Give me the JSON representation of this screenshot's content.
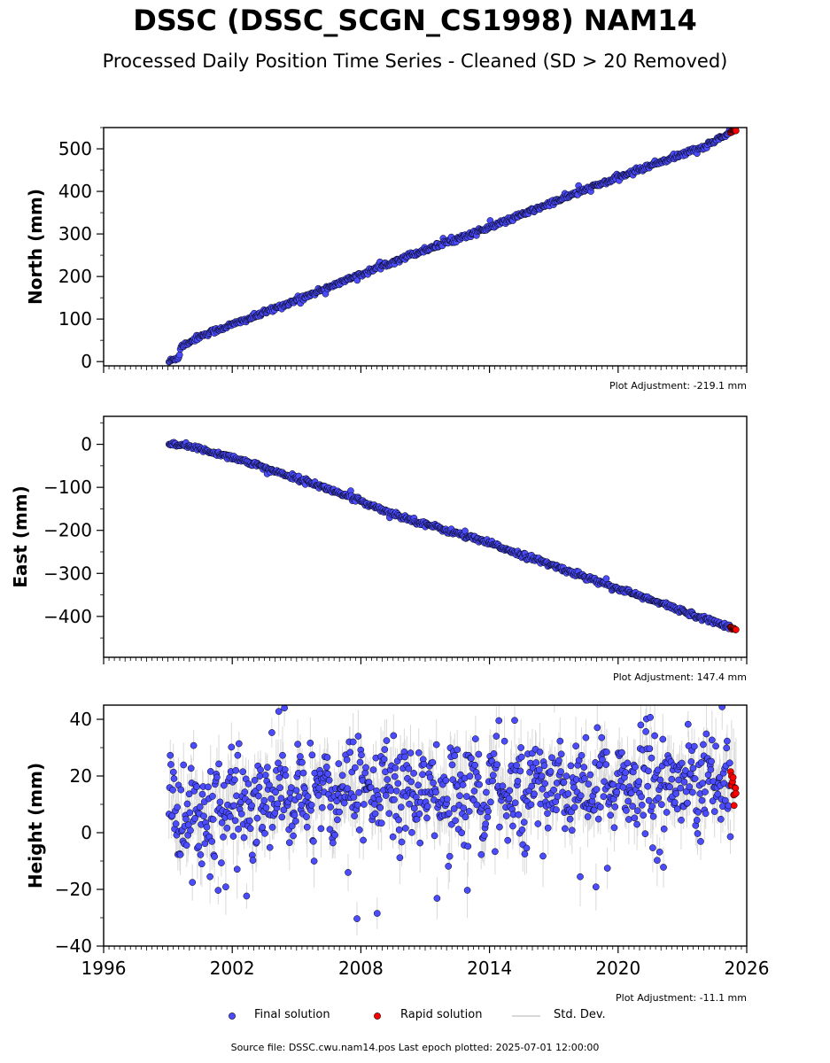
{
  "chart_data": {
    "title": "DSSC (DSSC_SCGN_CS1998) NAM14",
    "subtitle": "Processed Daily Position Time Series - Cleaned (SD > 20 Removed)",
    "type": "scatter",
    "x_range": [
      1996,
      2026
    ],
    "x_ticks": [
      "1996",
      "2002",
      "2008",
      "2014",
      "2020",
      "2026"
    ],
    "data_start": 1999.05,
    "data_end": 2025.5,
    "rapid_start": 2025.25,
    "panels": [
      {
        "ylabel": "North (mm)",
        "ylim": [
          -10,
          550
        ],
        "yticks": [
          "0",
          "100",
          "200",
          "300",
          "400",
          "500"
        ],
        "ytick_values": [
          0,
          100,
          200,
          300,
          400,
          500
        ],
        "adjustment": "Plot Adjustment: -219.1 mm",
        "trend": [
          [
            1999.05,
            0
          ],
          [
            1999.5,
            10
          ],
          [
            1999.6,
            35
          ],
          [
            2000.5,
            60
          ],
          [
            2003,
            105
          ],
          [
            2006,
            165
          ],
          [
            2010,
            245
          ],
          [
            2014,
            315
          ],
          [
            2018,
            395
          ],
          [
            2022,
            470
          ],
          [
            2024,
            505
          ],
          [
            2025.5,
            545
          ]
        ],
        "scatter_sd": 3
      },
      {
        "ylabel": "East (mm)",
        "ylim": [
          -495,
          65
        ],
        "yticks": [
          "0",
          "−100",
          "−200",
          "−300",
          "−400"
        ],
        "ytick_values": [
          0,
          -100,
          -200,
          -300,
          -400
        ],
        "adjustment": "Plot Adjustment: 147.4 mm",
        "trend": [
          [
            1999.05,
            0
          ],
          [
            2000,
            -5
          ],
          [
            2002,
            -30
          ],
          [
            2006,
            -95
          ],
          [
            2010,
            -170
          ],
          [
            2014,
            -230
          ],
          [
            2018,
            -300
          ],
          [
            2022,
            -370
          ],
          [
            2025.5,
            -430
          ]
        ],
        "scatter_sd": 3
      },
      {
        "ylabel": "Height (mm)",
        "ylim": [
          -40,
          45
        ],
        "yticks": [
          "40",
          "20",
          "0",
          "−20",
          "−40"
        ],
        "ytick_values": [
          40,
          20,
          0,
          -20,
          -40
        ],
        "adjustment": "Plot Adjustment: -11.1 mm",
        "trend": [
          [
            1999.05,
            5
          ],
          [
            2002,
            10
          ],
          [
            2006,
            13
          ],
          [
            2010,
            14
          ],
          [
            2014,
            16
          ],
          [
            2018,
            16
          ],
          [
            2022,
            17
          ],
          [
            2025.5,
            17
          ]
        ],
        "scatter_sd": 8
      }
    ],
    "legend": [
      "Final solution",
      "Rapid solution",
      "Std. Dev."
    ],
    "colors": {
      "final": "#4b4bff",
      "rapid": "#ff0000",
      "stddev": "#bbbbbb",
      "outline": "#000000"
    }
  },
  "footer": "Source file: DSSC.cwu.nam14.pos  Last epoch plotted: 2025-07-01 12:00:00"
}
